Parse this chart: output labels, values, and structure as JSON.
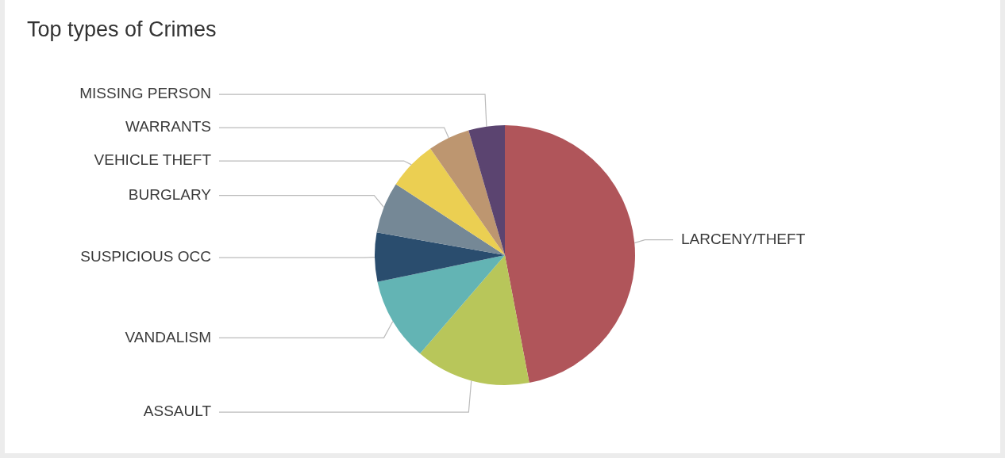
{
  "chart_data": {
    "type": "pie",
    "title": "Top types of Crimes",
    "categories": [
      "LARCENY/THEFT",
      "ASSAULT",
      "VANDALISM",
      "SUSPICIOUS OCC",
      "BURGLARY",
      "VEHICLE THEFT",
      "WARRANTS",
      "MISSING PERSON"
    ],
    "values": [
      47,
      14.3,
      10.4,
      6.1,
      6.4,
      6.1,
      5.2,
      4.5
    ],
    "colors": [
      "#b0555a",
      "#b8c65a",
      "#63b4b4",
      "#2a4d6e",
      "#758896",
      "#ebcf52",
      "#bd9670",
      "#5b4470"
    ],
    "legend": false
  }
}
